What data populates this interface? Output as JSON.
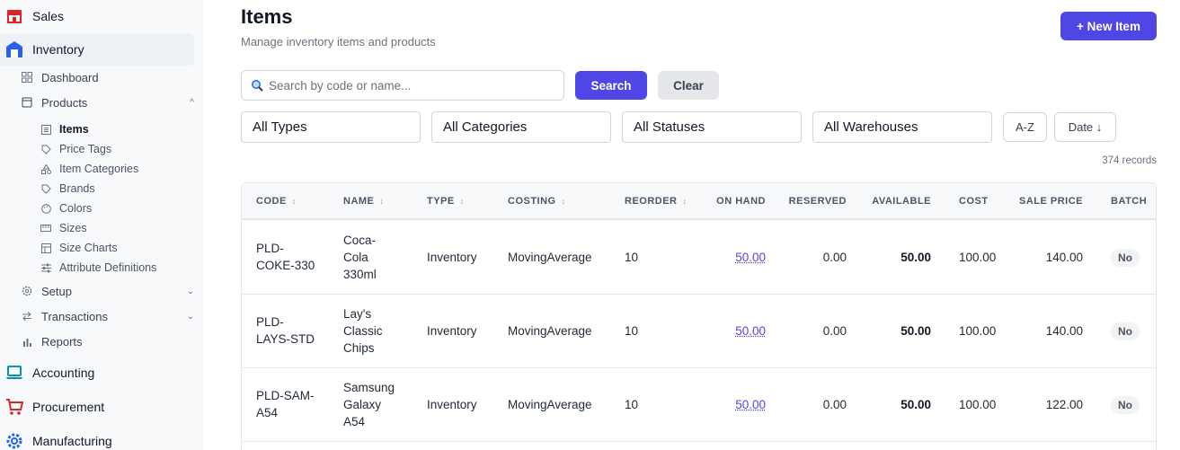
{
  "sidebar": {
    "modules": {
      "sales": "Sales",
      "inventory": "Inventory",
      "accounting": "Accounting",
      "procurement": "Procurement",
      "manufacturing": "Manufacturing"
    },
    "inventory_nav": {
      "dashboard": "Dashboard",
      "products": "Products",
      "setup": "Setup",
      "transactions": "Transactions",
      "reports": "Reports"
    },
    "products_sub": {
      "items": "Items",
      "price_tags": "Price Tags",
      "item_categories": "Item Categories",
      "brands": "Brands",
      "colors": "Colors",
      "sizes": "Sizes",
      "size_charts": "Size Charts",
      "attribute_definitions": "Attribute Definitions"
    }
  },
  "page": {
    "title": "Items",
    "subtitle": "Manage inventory items and products",
    "new_button": "+ New Item"
  },
  "search": {
    "placeholder": "Search by code or name...",
    "search_button": "Search",
    "clear_button": "Clear"
  },
  "filters": {
    "types": "All Types",
    "categories": "All Categories",
    "statuses": "All Statuses",
    "warehouses": "All Warehouses",
    "sort_az": "A-Z",
    "sort_date": "Date ↓"
  },
  "records": "374 records",
  "table": {
    "headers": {
      "code": "CODE",
      "name": "NAME",
      "type": "TYPE",
      "costing": "COSTING",
      "reorder": "REORDER",
      "on_hand": "ON HAND",
      "reserved": "RESERVED",
      "available": "AVAILABLE",
      "cost": "COST",
      "sale_price": "SALE PRICE",
      "batch": "BATCH"
    },
    "rows": [
      {
        "code1": "PLD-",
        "code2": "COKE-330",
        "name1": "Coca-",
        "name2": "Cola",
        "name3": "330ml",
        "type": "Inventory",
        "costing": "MovingAverage",
        "reorder": "10",
        "on_hand": "50.00",
        "reserved": "0.00",
        "available": "50.00",
        "cost": "100.00",
        "sale_price": "140.00",
        "batch": "No"
      },
      {
        "code1": "PLD-",
        "code2": "LAYS-STD",
        "name1": "Lay's",
        "name2": "Classic",
        "name3": "Chips",
        "type": "Inventory",
        "costing": "MovingAverage",
        "reorder": "10",
        "on_hand": "50.00",
        "reserved": "0.00",
        "available": "50.00",
        "cost": "100.00",
        "sale_price": "140.00",
        "batch": "No"
      },
      {
        "code1": "PLD-SAM-",
        "code2": "A54",
        "name1": "Samsung",
        "name2": "Galaxy",
        "name3": "A54",
        "type": "Inventory",
        "costing": "MovingAverage",
        "reorder": "10",
        "on_hand": "50.00",
        "reserved": "0.00",
        "available": "50.00",
        "cost": "100.00",
        "sale_price": "122.00",
        "batch": "No"
      }
    ]
  },
  "colors": {
    "accent": "#4f46e5",
    "sales_icon": "#dc2626",
    "inventory_icon": "#2563eb",
    "accounting_icon": "#0891b2",
    "procurement_icon": "#dc2626",
    "manufacturing_icon": "#2563eb"
  },
  "icons": {
    "sales": "store-icon",
    "inventory": "warehouse-icon",
    "dashboard": "grid-icon",
    "products": "box-icon",
    "items": "list-icon",
    "price_tags": "tag-icon",
    "item_categories": "shapes-icon",
    "brands": "tag-icon",
    "colors": "palette-icon",
    "sizes": "ruler-icon",
    "size_charts": "table-icon",
    "attribute_definitions": "sliders-icon",
    "setup": "gear-icon",
    "transactions": "swap-icon",
    "reports": "bar-chart-icon",
    "accounting": "laptop-icon",
    "procurement": "cart-icon",
    "manufacturing": "cog-icon",
    "search": "magnifier-icon"
  }
}
